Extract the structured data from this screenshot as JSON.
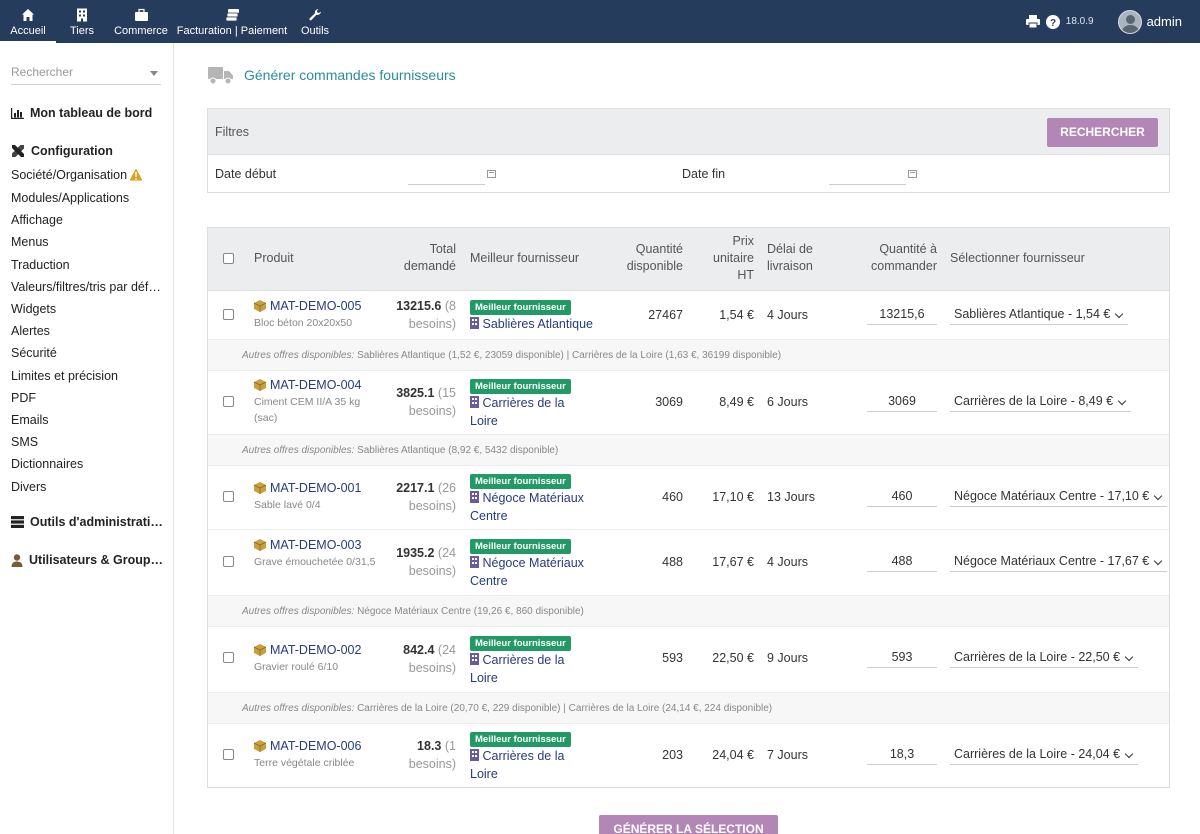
{
  "topnav": {
    "items": [
      {
        "label": "Accueil",
        "icon": "home-icon"
      },
      {
        "label": "Tiers",
        "icon": "building-icon"
      },
      {
        "label": "Commerce",
        "icon": "briefcase-icon"
      },
      {
        "label": "Facturation | Paiement",
        "icon": "money-icon"
      },
      {
        "label": "Outils",
        "icon": "wrench-icon"
      }
    ],
    "version": "18.0.9",
    "user": "admin"
  },
  "sidebar": {
    "search_placeholder": "Rechercher",
    "dashboard": "Mon tableau de bord",
    "configuration": "Configuration",
    "links": [
      "Société/Organisation",
      "Modules/Applications",
      "Affichage",
      "Menus",
      "Traduction",
      "Valeurs/filtres/tris par déf…",
      "Widgets",
      "Alertes",
      "Sécurité",
      "Limites et précision",
      "PDF",
      "Emails",
      "SMS",
      "Dictionnaires",
      "Divers"
    ],
    "admin_tools": "Outils d'administrati…",
    "users_groups": "Utilisateurs & Group…"
  },
  "page": {
    "title": "Générer commandes fournisseurs",
    "filters_label": "Filtres",
    "search_button": "RECHERCHER",
    "date_start": "Date début",
    "date_end": "Date fin",
    "generate_button": "GÉNÉRER LA SÉLECTION"
  },
  "table": {
    "headers": {
      "product": "Produit",
      "total": [
        "Total",
        "demandé"
      ],
      "best": "Meilleur fournisseur",
      "qty_avail": [
        "Quantité",
        "disponible"
      ],
      "unit_price": [
        "Prix",
        "unitaire",
        "HT"
      ],
      "delay": [
        "Délai de",
        "livraison"
      ],
      "qty_order": [
        "Quantité à",
        "commander"
      ],
      "select": "Sélectionner fournisseur"
    },
    "badge_label": "Meilleur fournisseur",
    "other_prefix": "Autres offres disponibles:",
    "rows": [
      {
        "ref": "MAT-DEMO-005",
        "desc": "Bloc béton 20x20x50",
        "total": "13215.6",
        "needs": [
          "(8",
          "besoins)"
        ],
        "supplier": [
          "Sablières Atlantique"
        ],
        "qty": "27467",
        "price": "1,54 €",
        "delay": "4 Jours",
        "order": "13215,6",
        "select": "Sablières Atlantique - 1,54 €",
        "others": "Sablières Atlantique (1,52 €, 23059 disponible) | Carrières de la Loire (1,63 €, 36199 disponible)"
      },
      {
        "ref": "MAT-DEMO-004",
        "desc": "Ciment CEM II/A 35 kg (sac)",
        "total": "3825.1",
        "needs": [
          "(15",
          "besoins)"
        ],
        "supplier": [
          "Carrières de la",
          "Loire"
        ],
        "qty": "3069",
        "price": "8,49 €",
        "delay": "6 Jours",
        "order": "3069",
        "select": "Carrières de la Loire - 8,49 €",
        "others": "Sablières Atlantique (8,92 €, 5432 disponible)"
      },
      {
        "ref": "MAT-DEMO-001",
        "desc": "Sable lavé 0/4",
        "total": "2217.1",
        "needs": [
          "(26",
          "besoins)"
        ],
        "supplier": [
          "Négoce Matériaux",
          "Centre"
        ],
        "qty": "460",
        "price": "17,10 €",
        "delay": "13 Jours",
        "order": "460",
        "select": "Négoce Matériaux Centre - 17,10 €",
        "others": ""
      },
      {
        "ref": "MAT-DEMO-003",
        "desc": "Grave émouchetée 0/31,5",
        "total": "1935.2",
        "needs": [
          "(24",
          "besoins)"
        ],
        "supplier": [
          "Négoce Matériaux",
          "Centre"
        ],
        "qty": "488",
        "price": "17,67 €",
        "delay": "4 Jours",
        "order": "488",
        "select": "Négoce Matériaux Centre - 17,67 €",
        "others": "Négoce Matériaux Centre (19,26 €, 860 disponible)"
      },
      {
        "ref": "MAT-DEMO-002",
        "desc": "Gravier roulé 6/10",
        "total": "842.4",
        "needs": [
          "(24",
          "besoins)"
        ],
        "supplier": [
          "Carrières de la",
          "Loire"
        ],
        "qty": "593",
        "price": "22,50 €",
        "delay": "9 Jours",
        "order": "593",
        "select": "Carrières de la Loire - 22,50 €",
        "others": "Carrières de la Loire (20,70 €, 229 disponible) | Carrières de la Loire (24,14 €, 224 disponible)"
      },
      {
        "ref": "MAT-DEMO-006",
        "desc": "Terre végétale criblée",
        "total": "18.3",
        "needs": [
          "(1",
          "besoins)"
        ],
        "supplier": [
          "Carrières de la",
          "Loire"
        ],
        "qty": "203",
        "price": "24,04 €",
        "delay": "7 Jours",
        "order": "18,3",
        "select": "Carrières de la Loire - 24,04 €",
        "others": ""
      }
    ]
  }
}
